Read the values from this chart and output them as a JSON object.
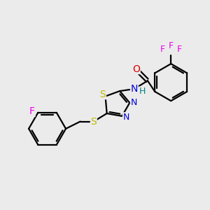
{
  "bg_color": "#ebebeb",
  "line_color": "#000000",
  "bond_width": 1.6,
  "font_size": 9,
  "atom_colors": {
    "N": "#0000dd",
    "O": "#dd0000",
    "S": "#bbbb00",
    "F": "#ee00ee",
    "H": "#008080",
    "C": "#000000"
  },
  "layout": {
    "xlim": [
      0,
      10
    ],
    "ylim": [
      0,
      10
    ]
  }
}
